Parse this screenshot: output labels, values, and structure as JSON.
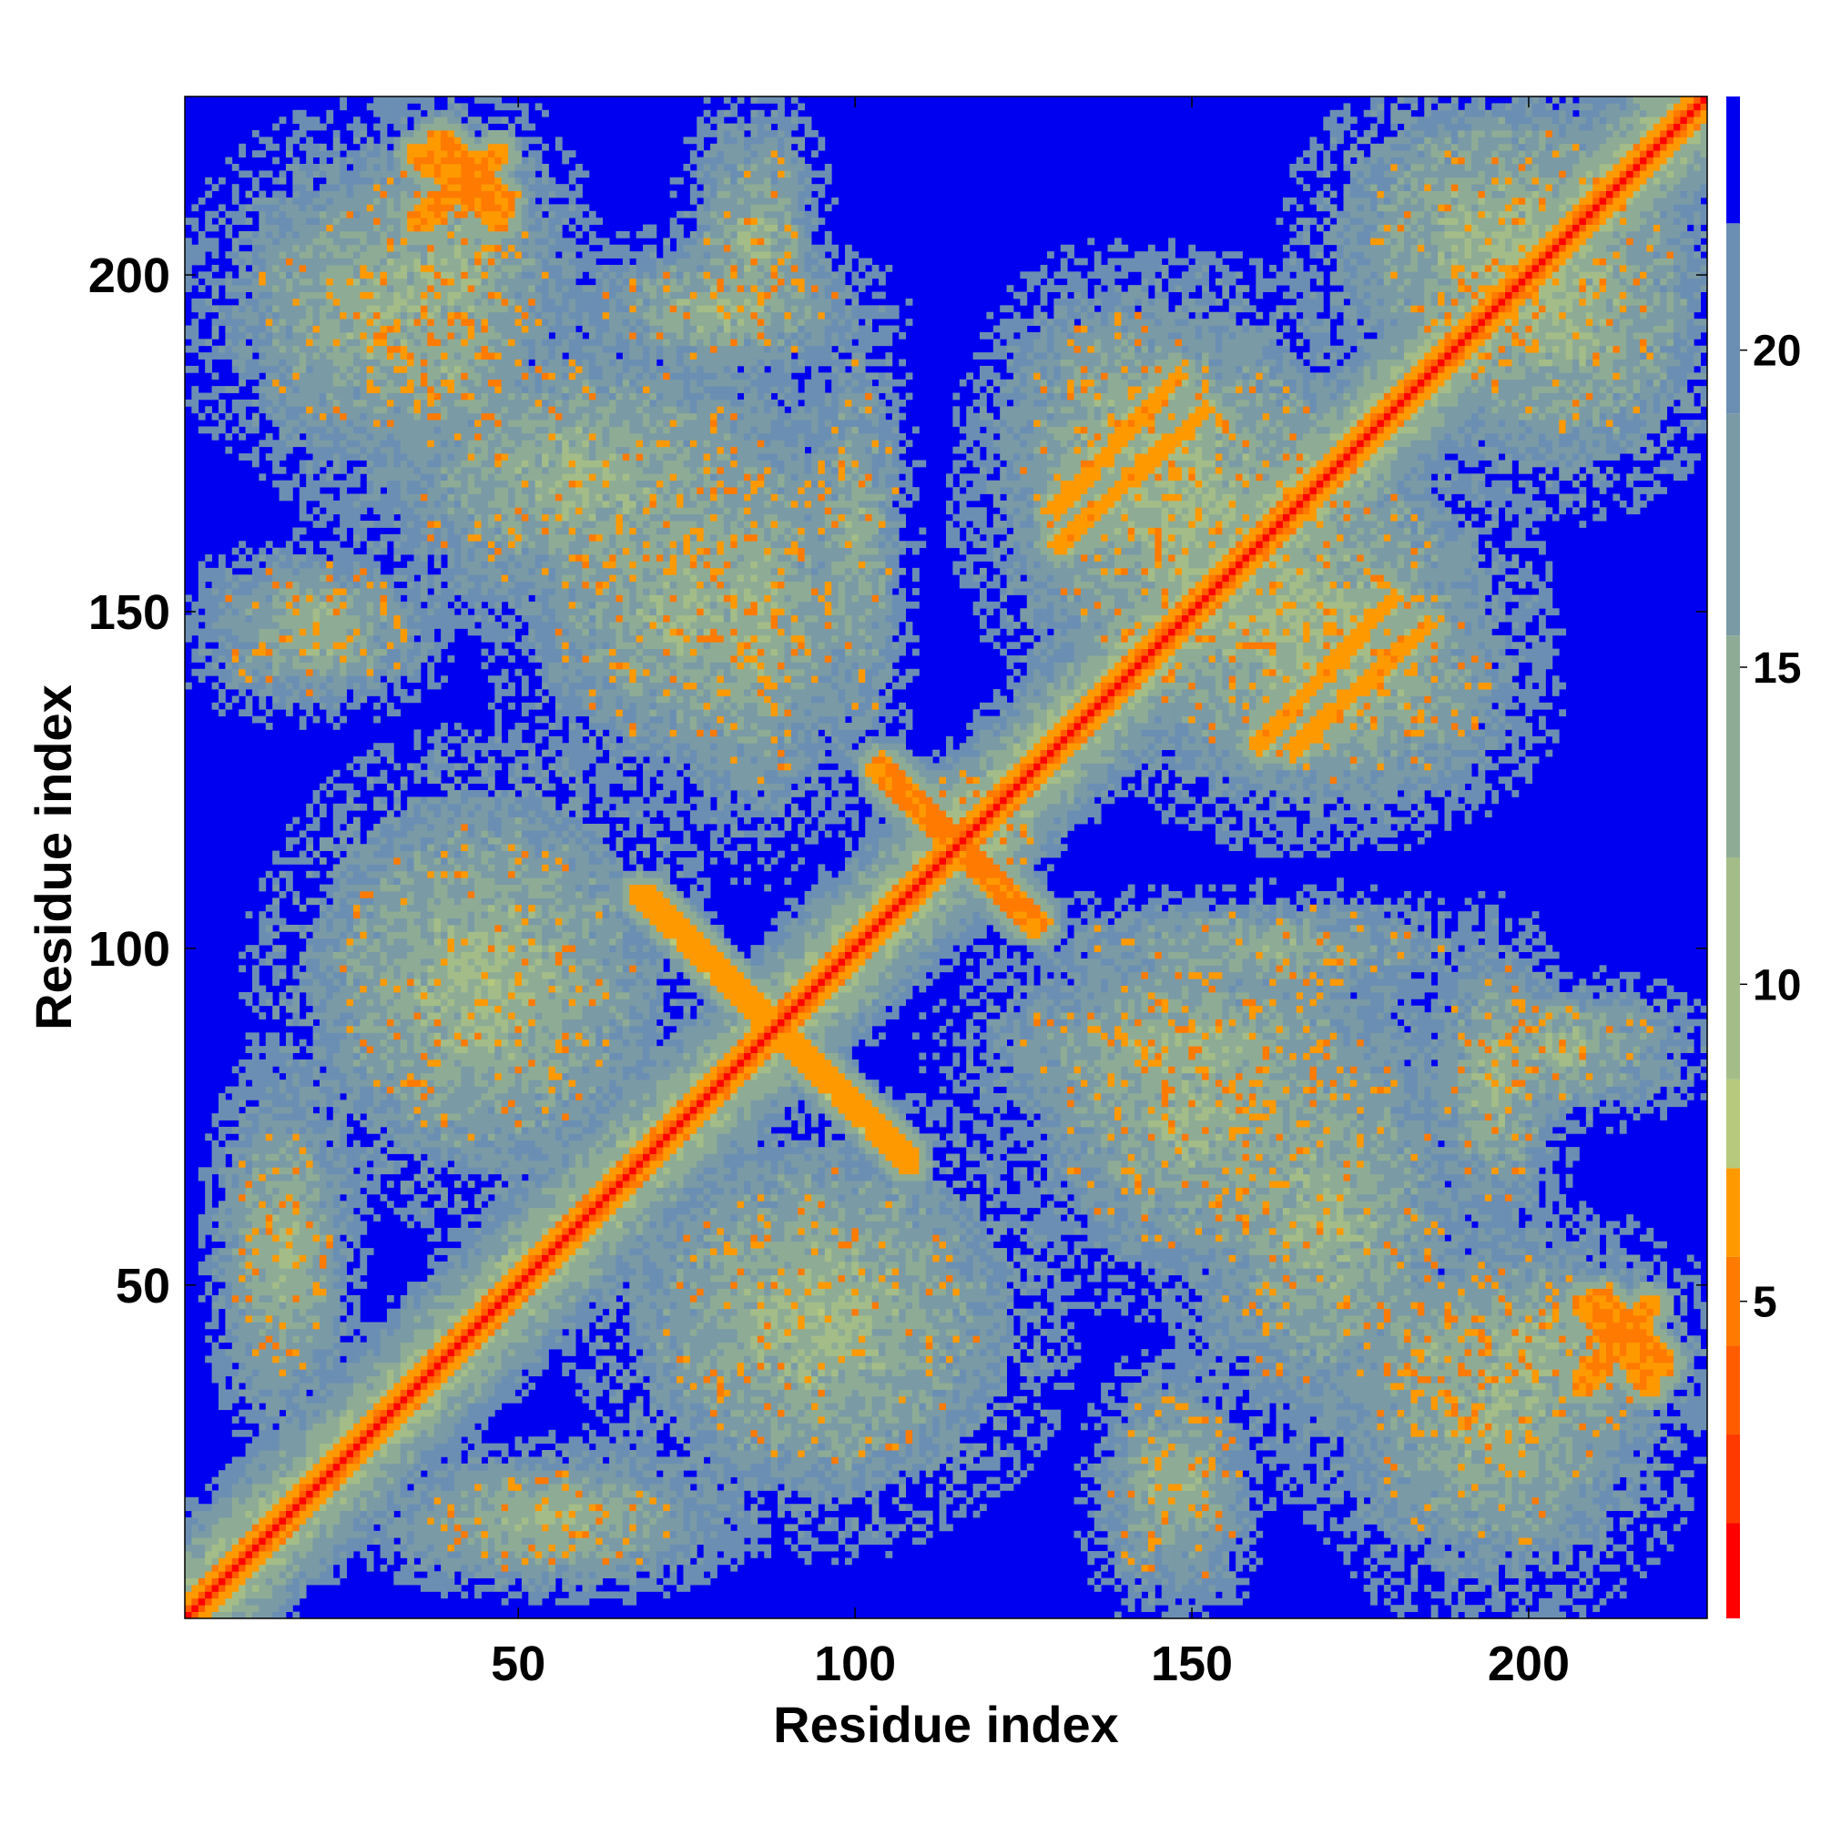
{
  "chart_data": {
    "type": "heatmap",
    "title": "",
    "xlabel": "Residue index",
    "ylabel": "Residue index",
    "xlim": [
      1,
      226
    ],
    "ylim": [
      1,
      226
    ],
    "x_ticks": [
      50,
      100,
      150,
      200
    ],
    "y_ticks": [
      50,
      100,
      150,
      200
    ],
    "x_tick_labels": [
      "50",
      "100",
      "150",
      "200"
    ],
    "y_tick_labels": [
      "50",
      "100",
      "150",
      "200"
    ],
    "grid": false,
    "legend": "none",
    "colorbar": {
      "placement": "right",
      "range": [
        0,
        24
      ],
      "ticks": [
        5,
        10,
        15,
        20
      ],
      "tick_labels": [
        "5",
        "10",
        "15",
        "20"
      ],
      "levels": [
        {
          "from": 0,
          "to": 1.5,
          "color": "#ff0000"
        },
        {
          "from": 1.5,
          "to": 2.9,
          "color": "#ff3a00"
        },
        {
          "from": 2.9,
          "to": 4.3,
          "color": "#ff5c00"
        },
        {
          "from": 4.3,
          "to": 5.7,
          "color": "#ff7a00"
        },
        {
          "from": 5.7,
          "to": 7.1,
          "color": "#ff9900"
        },
        {
          "from": 7.1,
          "to": 8.5,
          "color": "#b6c97c"
        },
        {
          "from": 8.5,
          "to": 12.0,
          "color": "#a4bd88"
        },
        {
          "from": 12.0,
          "to": 15.5,
          "color": "#8eac95"
        },
        {
          "from": 15.5,
          "to": 19.0,
          "color": "#7a9aa6"
        },
        {
          "from": 19.0,
          "to": 22.0,
          "color": "#6b8fb3"
        },
        {
          "from": 22.0,
          "to": 24.0,
          "color": "#0000f0"
        }
      ]
    },
    "background_color": "#0000f0",
    "n_residues": 226,
    "contact_features": [
      {
        "kind": "diagonal",
        "from": 1,
        "to": 226,
        "value": 0.5
      },
      {
        "kind": "blob",
        "i": 45,
        "j": 95,
        "ri": 28,
        "rj": 30,
        "value": 11
      },
      {
        "kind": "blob",
        "i": 60,
        "j": 170,
        "ri": 34,
        "rj": 22,
        "value": 12
      },
      {
        "kind": "blob",
        "i": 30,
        "j": 195,
        "ri": 25,
        "rj": 25,
        "value": 12
      },
      {
        "kind": "blob",
        "i": 85,
        "j": 150,
        "ri": 15,
        "rj": 32,
        "value": 12
      },
      {
        "kind": "blob",
        "i": 100,
        "j": 160,
        "ri": 8,
        "rj": 35,
        "value": 13
      },
      {
        "kind": "blob",
        "i": 85,
        "j": 205,
        "ri": 10,
        "rj": 20,
        "value": 12
      },
      {
        "kind": "blob",
        "i": 150,
        "j": 165,
        "ri": 28,
        "rj": 30,
        "value": 11
      },
      {
        "kind": "blob",
        "i": 175,
        "j": 140,
        "ri": 24,
        "rj": 20,
        "value": 12
      },
      {
        "kind": "blob",
        "i": 205,
        "j": 195,
        "ri": 22,
        "rj": 25,
        "value": 11
      },
      {
        "kind": "blob",
        "i": 150,
        "j": 75,
        "ri": 25,
        "rj": 25,
        "value": 12
      },
      {
        "kind": "blob",
        "i": 200,
        "j": 40,
        "ri": 24,
        "rj": 18,
        "value": 12
      },
      {
        "kind": "blob",
        "i": 195,
        "j": 80,
        "ri": 10,
        "rj": 22,
        "value": 12
      },
      {
        "kind": "blob",
        "i": 145,
        "j": 20,
        "ri": 10,
        "rj": 18,
        "value": 13
      },
      {
        "kind": "blob",
        "i": 20,
        "j": 150,
        "ri": 18,
        "rj": 10,
        "value": 13
      },
      {
        "kind": "blob",
        "i": 15,
        "j": 55,
        "ri": 10,
        "rj": 25,
        "value": 12
      },
      {
        "kind": "blob",
        "i": 55,
        "j": 15,
        "ri": 25,
        "rj": 10,
        "value": 12
      },
      {
        "kind": "blob",
        "i": 40,
        "j": 185,
        "ri": 12,
        "rj": 12,
        "value": 13
      },
      {
        "kind": "blob",
        "i": 120,
        "j": 115,
        "ri": 8,
        "rj": 8,
        "value": 12
      },
      {
        "kind": "strand",
        "i0": 104,
        "j0": 127,
        "i1": 126,
        "j1": 104,
        "value": 5.5,
        "width": 2
      },
      {
        "kind": "strand",
        "i0": 68,
        "j0": 108,
        "i1": 108,
        "j1": 68,
        "value": 6,
        "width": 1.5
      },
      {
        "kind": "strand",
        "i0": 35,
        "j0": 218,
        "i1": 47,
        "j1": 208,
        "value": 5.5,
        "width": 1.5
      },
      {
        "kind": "strand",
        "i0": 208,
        "j0": 35,
        "i1": 218,
        "j1": 47,
        "value": 5.5,
        "width": 1.5
      },
      {
        "kind": "strand",
        "i0": 130,
        "j0": 160,
        "i1": 152,
        "j1": 180,
        "value": 6,
        "width": 1.2
      },
      {
        "kind": "strand",
        "i0": 160,
        "j0": 130,
        "i1": 180,
        "j1": 152,
        "value": 6,
        "width": 1.2
      },
      {
        "kind": "strand",
        "i0": 165,
        "j0": 130,
        "i1": 185,
        "j1": 148,
        "value": 6,
        "width": 1.2
      },
      {
        "kind": "strand",
        "i0": 130,
        "j0": 165,
        "i1": 148,
        "j1": 185,
        "value": 6,
        "width": 1.2
      },
      {
        "kind": "strand",
        "i0": 210,
        "j0": 48,
        "i1": 220,
        "j1": 38,
        "value": 5.5,
        "width": 1.5
      },
      {
        "kind": "strand",
        "i0": 48,
        "j0": 210,
        "i1": 38,
        "j1": 220,
        "value": 5.5,
        "width": 1.5
      }
    ]
  }
}
